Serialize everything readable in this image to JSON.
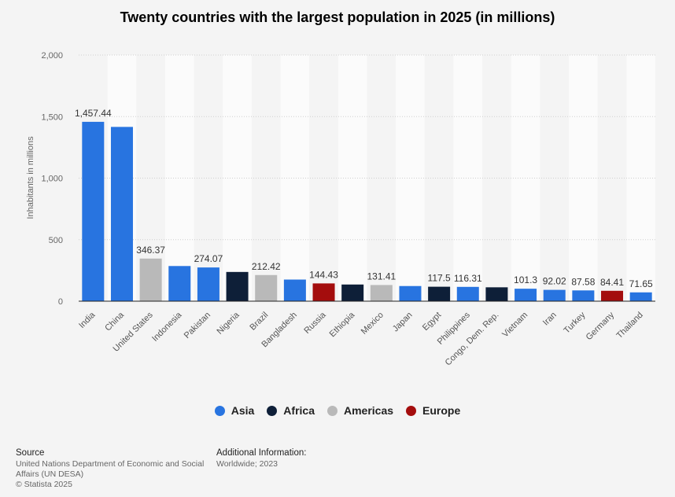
{
  "chart_data": {
    "type": "bar",
    "title": "Twenty countries with the largest population in 2025 (in millions)",
    "ylabel": "Inhabitants in millions",
    "ylim": [
      0,
      2000
    ],
    "yticks": [
      "0",
      "500",
      "1,000",
      "1,500",
      "2,000"
    ],
    "grid": true,
    "legend_position": "bottom",
    "categories": [
      "India",
      "China",
      "United States",
      "Indonesia",
      "Pakistan",
      "Nigeria",
      "Brazil",
      "Bangladesh",
      "Russia",
      "Ethiopia",
      "Mexico",
      "Japan",
      "Egypt",
      "Philippines",
      "Congo, Dem. Rep.",
      "Vietnam",
      "Iran",
      "Turkey",
      "Germany",
      "Thailand"
    ],
    "values": [
      1457.44,
      1416.1,
      346.37,
      285.7,
      274.07,
      237.5,
      212.42,
      175.7,
      144.43,
      135.5,
      131.41,
      123.1,
      117.5,
      116.31,
      112.8,
      101.3,
      92.02,
      87.58,
      84.41,
      71.65
    ],
    "data_labels": [
      "1,457.44",
      "",
      "346.37",
      "",
      "274.07",
      "",
      "212.42",
      "",
      "144.43",
      "",
      "131.41",
      "",
      "117.5",
      "116.31",
      "",
      "101.3",
      "92.02",
      "87.58",
      "84.41",
      "71.65"
    ],
    "regions": [
      "Asia",
      "Asia",
      "Americas",
      "Asia",
      "Asia",
      "Africa",
      "Americas",
      "Asia",
      "Europe",
      "Africa",
      "Americas",
      "Asia",
      "Africa",
      "Asia",
      "Africa",
      "Asia",
      "Asia",
      "Asia",
      "Europe",
      "Asia"
    ],
    "legend": [
      {
        "name": "Asia",
        "color": "#2874e0"
      },
      {
        "name": "Africa",
        "color": "#0e1f38"
      },
      {
        "name": "Americas",
        "color": "#b9b9b9"
      },
      {
        "name": "Europe",
        "color": "#a40d0d"
      }
    ]
  },
  "footer": {
    "source_heading": "Source",
    "source_line1": "United Nations Department of Economic and Social",
    "source_line2": "Affairs (UN DESA)",
    "source_line3": "© Statista 2025",
    "info_heading": "Additional Information:",
    "info_text": "Worldwide; 2023"
  }
}
